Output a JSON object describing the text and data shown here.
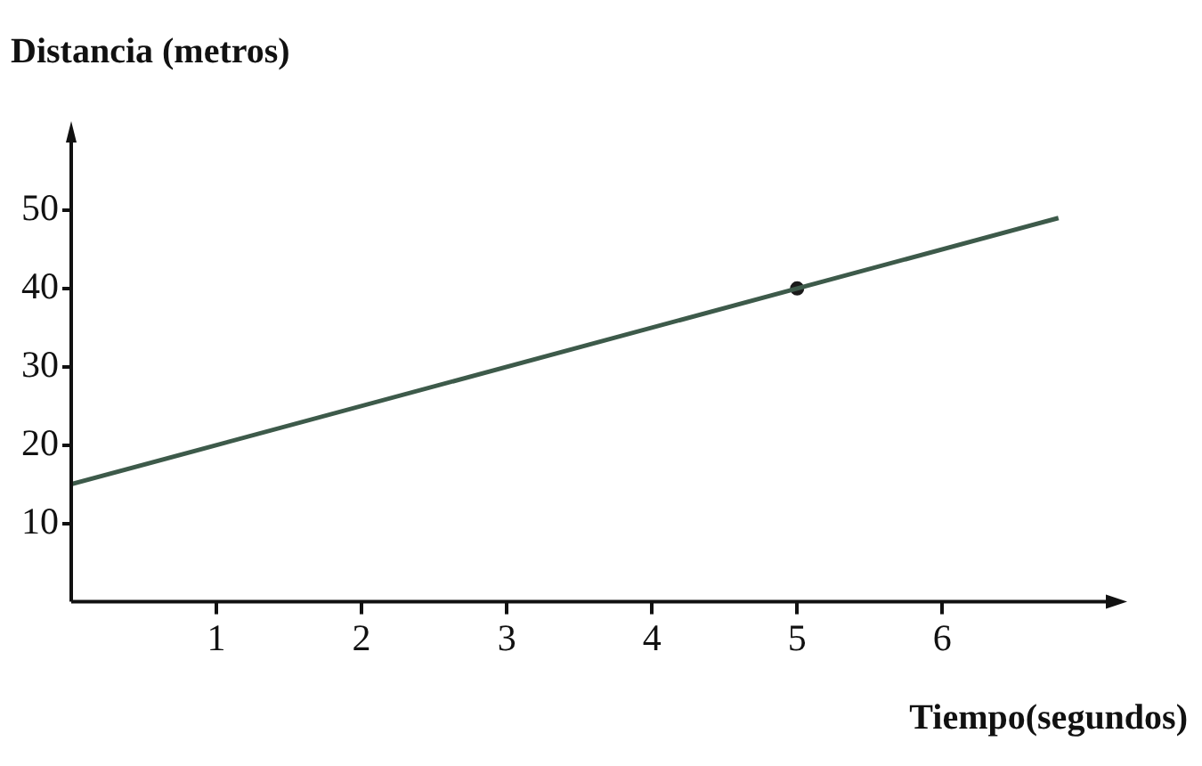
{
  "chart_data": {
    "type": "line",
    "xlabel": "Tiempo(segundos)",
    "ylabel": "Distancia (metros)",
    "xlim": [
      0,
      7.2
    ],
    "ylim": [
      0,
      60
    ],
    "xticks": [
      1,
      2,
      3,
      4,
      5,
      6
    ],
    "yticks": [
      10,
      20,
      30,
      40,
      50
    ],
    "grid": false,
    "legend": false,
    "series": [
      {
        "color": "#3d5a4a",
        "x": [
          0,
          6.8
        ],
        "values": [
          15,
          49
        ],
        "marker": "none"
      },
      {
        "type": "scatter",
        "color": "#1a1a1a",
        "x": [
          5
        ],
        "values": [
          40
        ],
        "marker": "circle"
      }
    ]
  }
}
